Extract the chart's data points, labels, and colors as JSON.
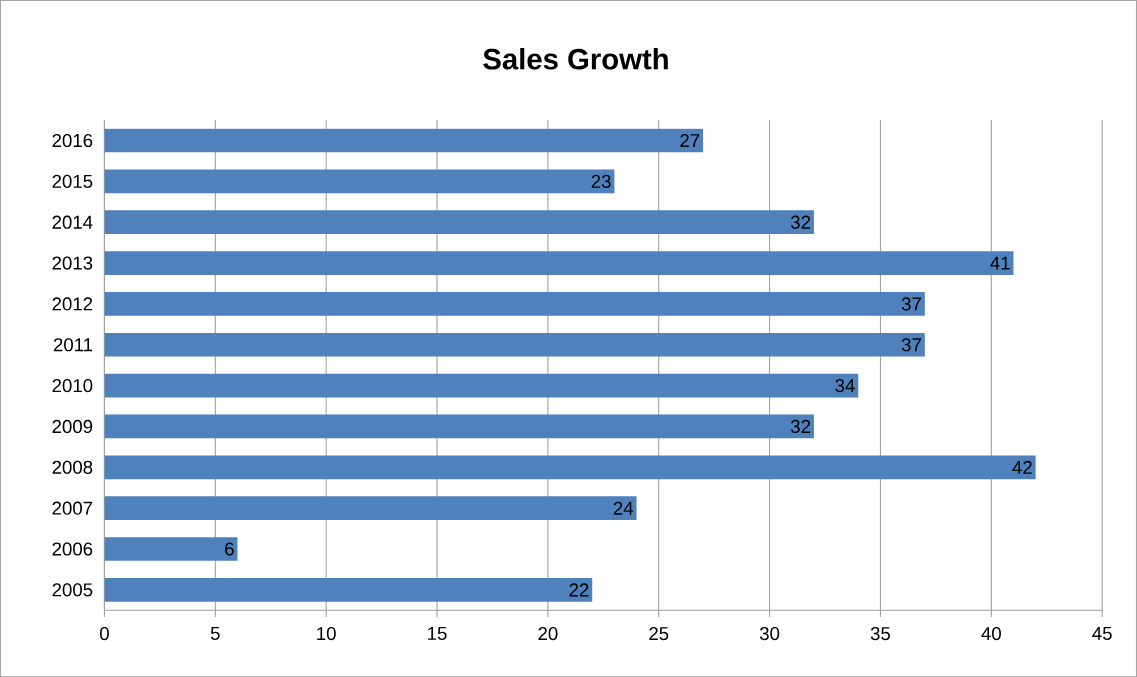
{
  "chart_data": {
    "type": "bar",
    "orientation": "horizontal",
    "title": "Sales Growth",
    "categories": [
      "2016",
      "2015",
      "2014",
      "2013",
      "2012",
      "2011",
      "2010",
      "2009",
      "2008",
      "2007",
      "2006",
      "2005"
    ],
    "values": [
      27,
      23,
      32,
      41,
      37,
      37,
      34,
      32,
      42,
      24,
      6,
      22
    ],
    "color": "#4f81bd",
    "xlim": [
      0,
      45
    ],
    "xticks": [
      0,
      5,
      10,
      15,
      20,
      25,
      30,
      35,
      40,
      45
    ],
    "grid": "x",
    "data_labels": true
  }
}
